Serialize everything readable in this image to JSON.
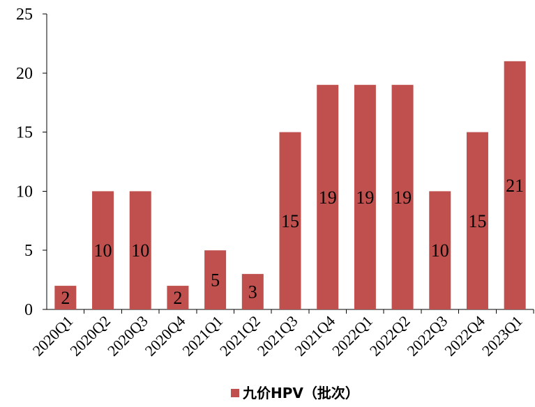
{
  "chart_data": {
    "type": "bar",
    "title": "",
    "xlabel": "",
    "ylabel": "",
    "categories": [
      "2020Q1",
      "2020Q2",
      "2020Q3",
      "2020Q4",
      "2021Q1",
      "2021Q2",
      "2021Q3",
      "2021Q4",
      "2022Q1",
      "2022Q2",
      "2022Q3",
      "2022Q4",
      "2023Q1"
    ],
    "series": [
      {
        "name": "九价HPV（批次）",
        "values": [
          2,
          10,
          10,
          2,
          5,
          3,
          15,
          19,
          19,
          19,
          10,
          15,
          21
        ],
        "color": "#C0504D"
      }
    ],
    "ylim": [
      0,
      25
    ],
    "yticks": [
      0,
      5,
      10,
      15,
      20,
      25
    ],
    "data_labels": true,
    "grid": false,
    "legend_position": "bottom-center"
  }
}
